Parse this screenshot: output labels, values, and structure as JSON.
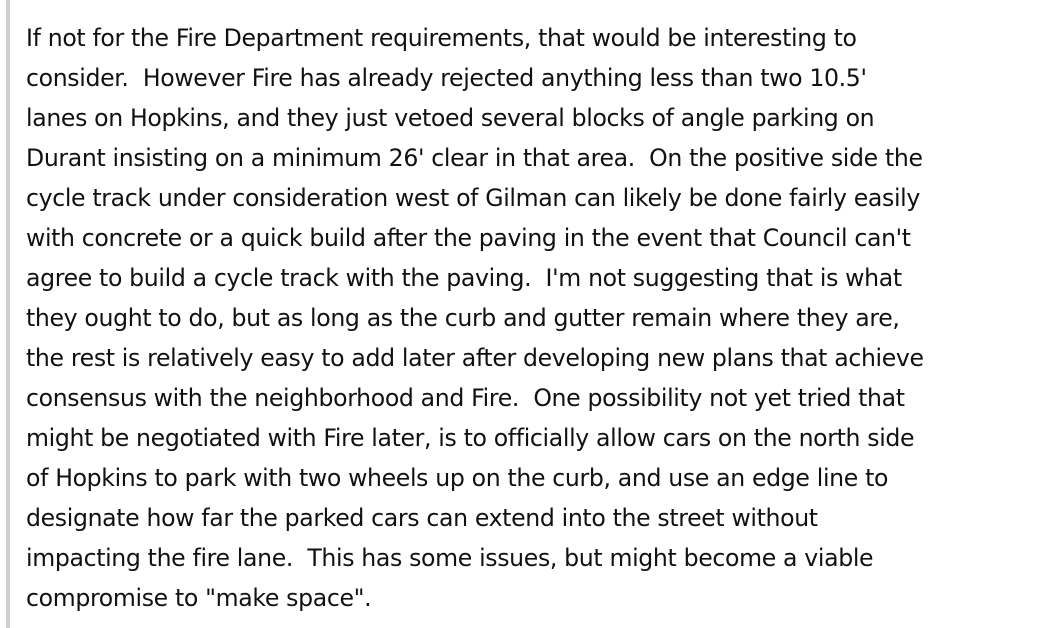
{
  "quote": {
    "lines": [
      "If not for the Fire Department requirements, that would be interesting to",
      "consider.  However Fire has already rejected anything less than two 10.5'",
      "lanes on Hopkins, and they just vetoed several blocks of angle parking on",
      "Durant insisting on a minimum 26' clear in that area.  On the positive side the",
      "cycle track under consideration west of Gilman can likely be done fairly easily",
      "with concrete or a quick build after the paving in the event that Council can't",
      "agree to build a cycle track with the paving.  I'm not suggesting that is what",
      "they ought to do, but as long as the curb and gutter remain where they are,",
      "the rest is relatively easy to add later after developing new plans that achieve",
      "consensus with the neighborhood and Fire.  One possibility not yet tried that",
      "might be negotiated with Fire later, is to officially allow cars on the north side",
      "of Hopkins to park with two wheels up on the curb, and use an edge line to",
      "designate how far the parked cars can extend into the street without",
      "impacting the fire lane.  This has some issues, but might become a viable",
      "compromise to \"make space\"."
    ]
  }
}
